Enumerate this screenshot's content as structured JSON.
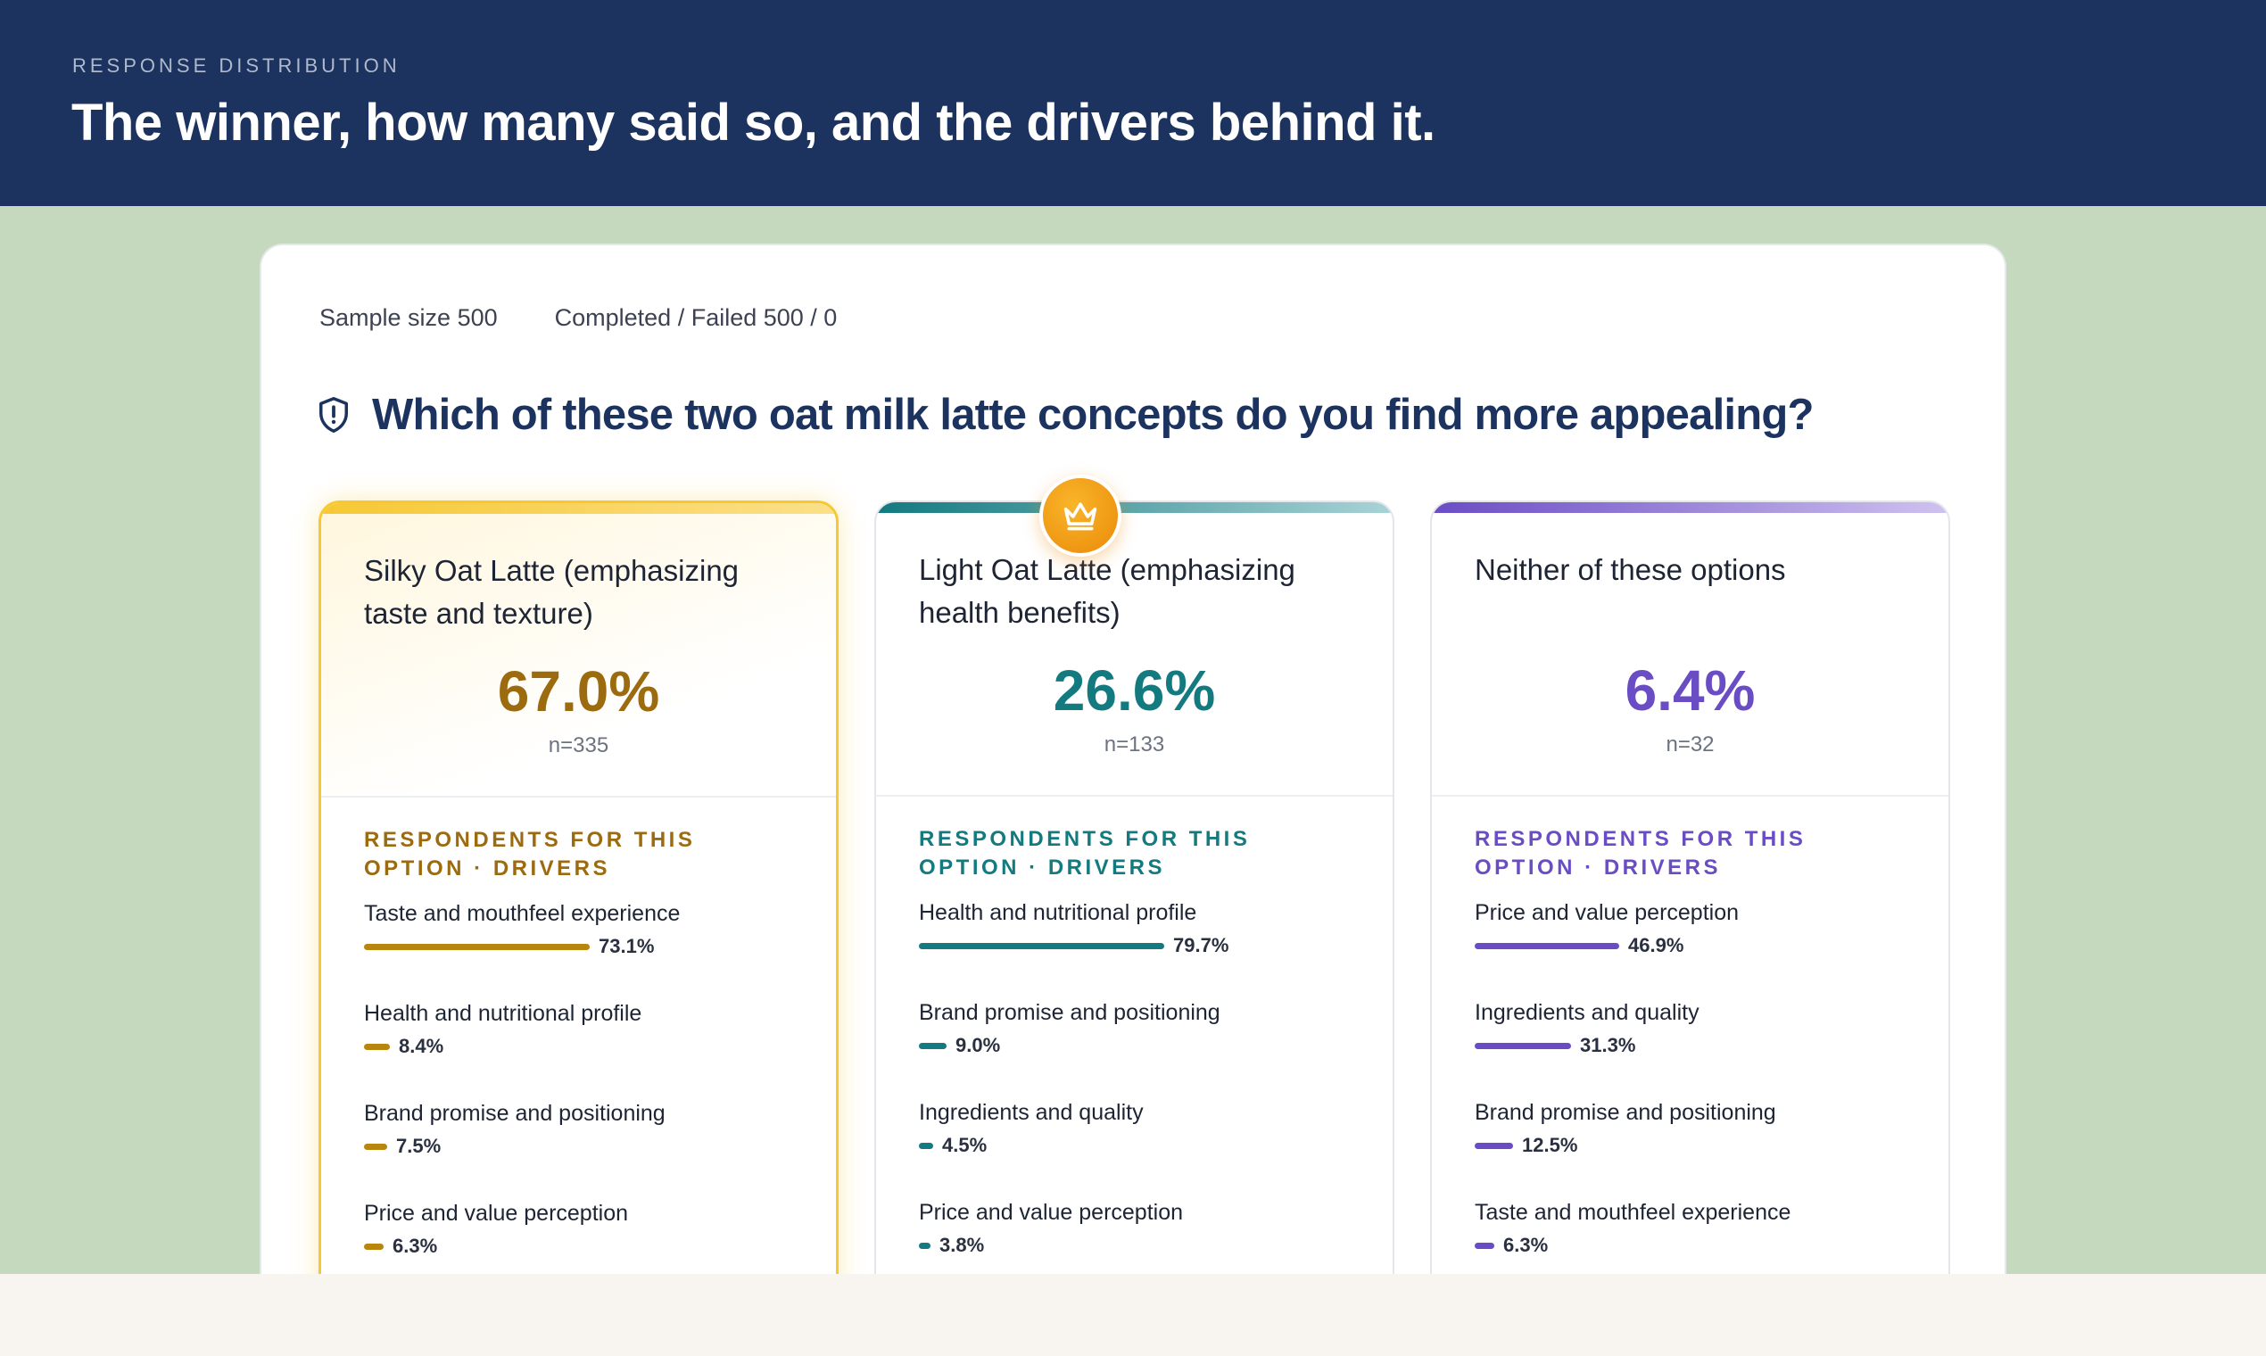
{
  "header": {
    "eyebrow": "RESPONSE DISTRIBUTION",
    "title": "The winner, how many said so, and the drivers behind it."
  },
  "meta": {
    "sample_size": "Sample size 500",
    "completed": "Completed / Failed 500 / 0"
  },
  "question": {
    "icon": "shield-alert-icon",
    "text": "Which of these two oat milk latte concepts do you find more appealing?"
  },
  "colors": {
    "header_bg": "#1c325f",
    "winner": "#9c6b10",
    "teal": "#137a80",
    "purple": "#6a4cc4"
  },
  "options": [
    {
      "title": "Silky Oat Latte (emphasizing taste and texture)",
      "percent": "67.0%",
      "n": "n=335",
      "section_label": "RESPONDENTS FOR THIS OPTION · DRIVERS",
      "winner": true,
      "drivers": [
        {
          "label": "Taste and mouthfeel experience",
          "value": "73.1%",
          "share": 73.1
        },
        {
          "label": "Health and nutritional profile",
          "value": "8.4%",
          "share": 8.4
        },
        {
          "label": "Brand promise and positioning",
          "value": "7.5%",
          "share": 7.5
        },
        {
          "label": "Price and value perception",
          "value": "6.3%",
          "share": 6.3
        }
      ]
    },
    {
      "title": "Light Oat Latte (emphasizing health benefits)",
      "percent": "26.6%",
      "n": "n=133",
      "section_label": "RESPONDENTS FOR THIS OPTION · DRIVERS",
      "winner": false,
      "drivers": [
        {
          "label": "Health and nutritional profile",
          "value": "79.7%",
          "share": 79.7
        },
        {
          "label": "Brand promise and positioning",
          "value": "9.0%",
          "share": 9.0
        },
        {
          "label": "Ingredients and quality",
          "value": "4.5%",
          "share": 4.5
        },
        {
          "label": "Price and value perception",
          "value": "3.8%",
          "share": 3.8
        }
      ]
    },
    {
      "title": "Neither of these options",
      "percent": "6.4%",
      "n": "n=32",
      "section_label": "RESPONDENTS FOR THIS OPTION · DRIVERS",
      "winner": false,
      "drivers": [
        {
          "label": "Price and value perception",
          "value": "46.9%",
          "share": 46.9
        },
        {
          "label": "Ingredients and quality",
          "value": "31.3%",
          "share": 31.3
        },
        {
          "label": "Brand promise and positioning",
          "value": "12.5%",
          "share": 12.5
        },
        {
          "label": "Taste and mouthfeel experience",
          "value": "6.3%",
          "share": 6.3
        }
      ]
    }
  ]
}
